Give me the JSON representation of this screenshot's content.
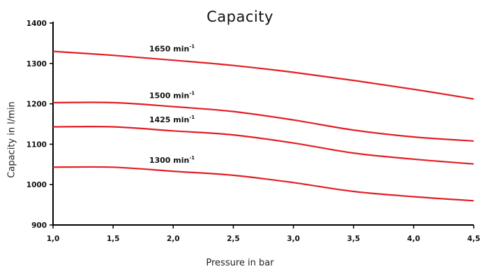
{
  "chart_data": {
    "type": "line",
    "title": "Capacity",
    "xlabel": "Pressure in bar",
    "ylabel": "Capacity in l/min",
    "xlim": [
      1.0,
      4.5
    ],
    "ylim": [
      900,
      1400
    ],
    "grid": false,
    "x_ticks": [
      "1,0",
      "1,5",
      "2,0",
      "2,5",
      "3,0",
      "3,5",
      "4,0",
      "4,5"
    ],
    "y_ticks": [
      "900",
      "1000",
      "1100",
      "1200",
      "1300",
      "1400"
    ],
    "line_color": "#e31e24",
    "x": [
      1.0,
      1.5,
      2.0,
      2.5,
      3.0,
      3.5,
      4.0,
      4.5
    ],
    "series": [
      {
        "name": "1650 min",
        "sup": "-1",
        "label_x": 1.8,
        "values": [
          1330,
          1320,
          1308,
          1295,
          1278,
          1258,
          1236,
          1212
        ]
      },
      {
        "name": "1500 min",
        "sup": "-1",
        "label_x": 1.8,
        "values": [
          1203,
          1203,
          1193,
          1181,
          1160,
          1135,
          1118,
          1108
        ]
      },
      {
        "name": "1425 min",
        "sup": "-1",
        "label_x": 1.8,
        "values": [
          1143,
          1143,
          1133,
          1123,
          1103,
          1078,
          1063,
          1051
        ]
      },
      {
        "name": "1300 min",
        "sup": "-1",
        "label_x": 1.8,
        "values": [
          1043,
          1043,
          1033,
          1023,
          1005,
          983,
          970,
          960
        ]
      }
    ]
  }
}
